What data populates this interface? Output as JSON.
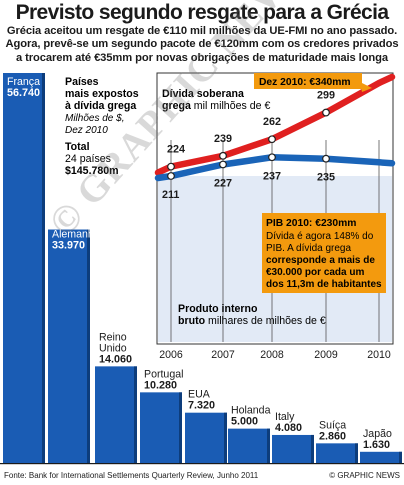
{
  "title": "Previsto segundo resgate para a Grécia",
  "subtitle_lines": [
    "Grécia aceitou um resgate de €110 mil milhões da UE-FMI no ano passado.",
    "Agora, prevê-se um segundo pacote de €120mm com os credores privados",
    "a trocarem até €35mm por novas obrigações de maturidade mais longa"
  ],
  "bar_legend": {
    "heading_lines": [
      "Países",
      "mais expostos",
      "à dívida grega"
    ],
    "unit_lines": [
      "Milhões de $,",
      "Dez 2010"
    ],
    "total_label": "Total",
    "total_countries": "24 países",
    "total_value": "$145.780m"
  },
  "line_legend": {
    "debt_title_lines": [
      "Dívida soberana",
      "grega"
    ],
    "debt_unit": " mil milhões de €",
    "debt_callout": "Dez 2010: €340mm",
    "gdp_title_lines": [
      "Produto interno",
      "bruto"
    ],
    "gdp_unit": " milhares de milhões de €",
    "gdp_callout_title": "PIB 2010: €230mm",
    "gdp_callout_lines": [
      "Dívida é agora 148% do",
      "PIB. A dívida grega",
      "corresponde a mais de",
      "€30.000 por cada um",
      "dos 11,3m de habitantes"
    ]
  },
  "watermark": "© GRAPHIC NEWS",
  "source": "Fonte: Bank for International Settlements Quarterly Review, Junho 2011",
  "credit": "© GRAPHIC NEWS",
  "colors": {
    "bar": "#1a5cb4",
    "bar_dark": "#0d3d7c",
    "debt_line": "#e02020",
    "gdp_line": "#1a64b8",
    "inset_bg": "#e2eaf6",
    "callout_bg": "#f39a0e"
  },
  "chart_data": [
    {
      "type": "bar",
      "title": "Países mais expostos à dívida grega",
      "unit": "Milhões de $, Dez 2010",
      "categories": [
        "França",
        "Alemanha",
        "Reino Unido",
        "Portugal",
        "EUA",
        "Holanda",
        "Italy",
        "Suíça",
        "Japão"
      ],
      "values": [
        56740,
        33970,
        14060,
        10280,
        7320,
        5000,
        4080,
        2860,
        1630
      ],
      "value_labels": [
        "56.740",
        "33.970",
        "14.060",
        "10.280",
        "7.320",
        "5.000",
        "4.080",
        "2.860",
        "1.630"
      ],
      "total": "$145.780m"
    },
    {
      "type": "line",
      "title": "Dívida soberana grega",
      "x": [
        "2006",
        "2007",
        "2008",
        "2009",
        "2010"
      ],
      "series": [
        {
          "name": "Dívida soberana grega",
          "values": [
            224,
            239,
            262,
            299,
            340
          ],
          "labels": [
            "224",
            "239",
            "262",
            "299",
            ""
          ]
        },
        {
          "name": "Produto interno bruto",
          "values": [
            211,
            227,
            237,
            235,
            230
          ],
          "labels": [
            "211",
            "227",
            "237",
            "235",
            ""
          ]
        }
      ]
    }
  ]
}
